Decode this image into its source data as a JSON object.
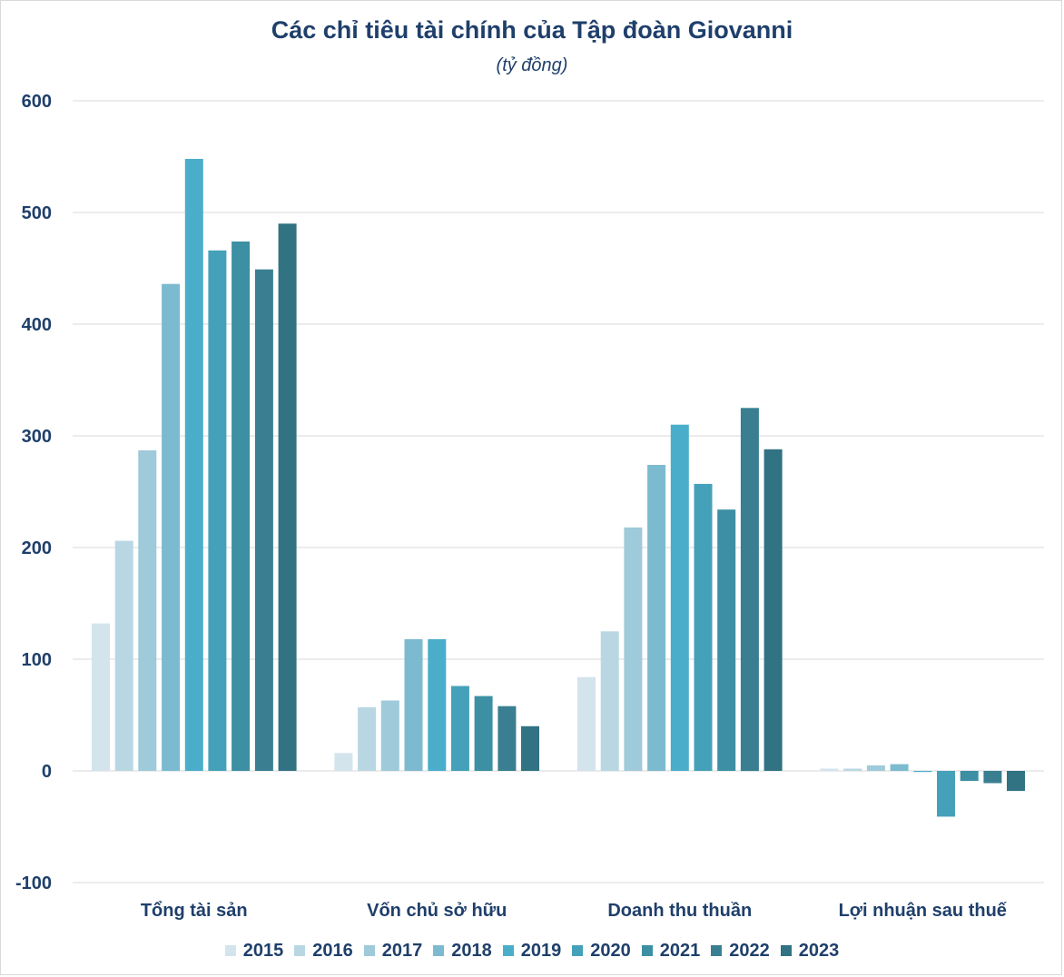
{
  "chart_data": {
    "type": "bar",
    "title": "Các chỉ tiêu tài chính của Tập đoàn Giovanni",
    "subtitle": "(tỷ đồng)",
    "categories": [
      "Tổng tài sản",
      "Vốn chủ sở hữu",
      "Doanh thu thuần",
      "Lợi nhuận sau thuế"
    ],
    "ylim": [
      -100,
      600
    ],
    "yticks": [
      600,
      500,
      400,
      300,
      200,
      100,
      0,
      -100
    ],
    "grid": true,
    "legend_position": "bottom",
    "series": [
      {
        "name": "2015",
        "color": "#d3e4ec",
        "values": [
          132,
          16,
          84,
          2
        ]
      },
      {
        "name": "2016",
        "color": "#b9d7e3",
        "values": [
          206,
          57,
          125,
          2
        ]
      },
      {
        "name": "2017",
        "color": "#9ecad9",
        "values": [
          287,
          63,
          218,
          5
        ]
      },
      {
        "name": "2018",
        "color": "#7cbbcf",
        "values": [
          436,
          118,
          274,
          6
        ]
      },
      {
        "name": "2019",
        "color": "#4aaecb",
        "values": [
          548,
          118,
          310,
          -1
        ]
      },
      {
        "name": "2020",
        "color": "#45a1b9",
        "values": [
          466,
          76,
          257,
          -41
        ]
      },
      {
        "name": "2021",
        "color": "#3d8fa3",
        "values": [
          474,
          67,
          234,
          -9
        ]
      },
      {
        "name": "2022",
        "color": "#397f91",
        "values": [
          449,
          58,
          325,
          -11
        ]
      },
      {
        "name": "2023",
        "color": "#317283",
        "values": [
          490,
          40,
          288,
          -18
        ]
      }
    ]
  }
}
